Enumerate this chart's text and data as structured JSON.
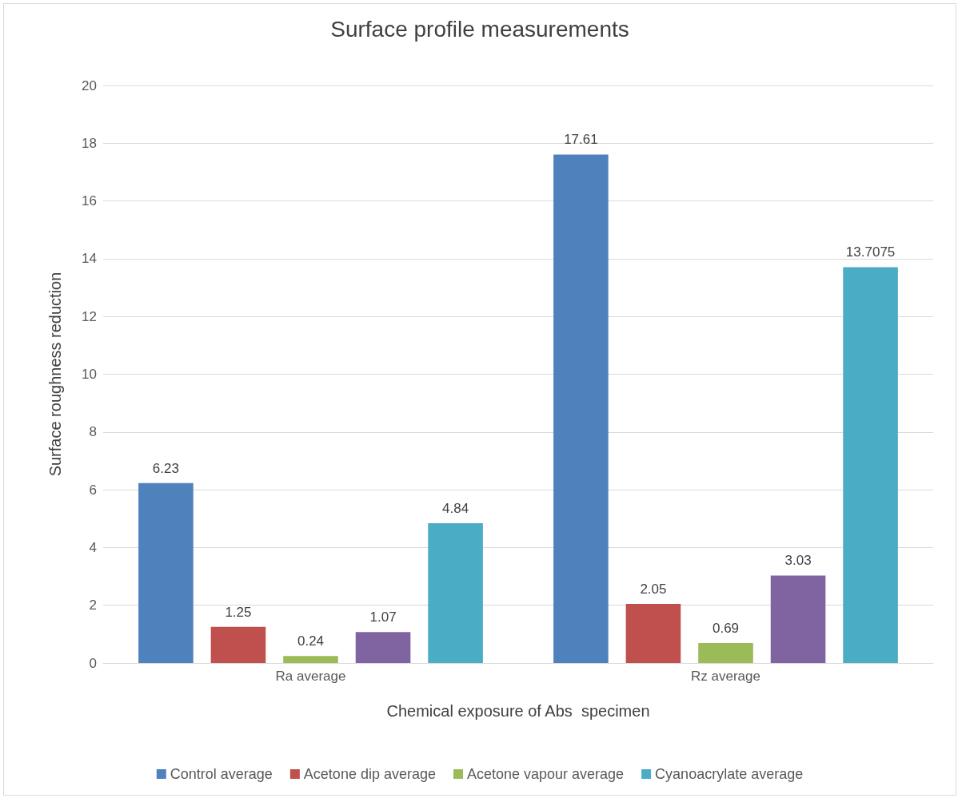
{
  "chart_data": {
    "type": "bar",
    "title": "Surface profile measurements",
    "xlabel": "Chemical exposure of Abs  specimen",
    "ylabel": "Surface roughness reduction",
    "categories": [
      "Ra average",
      "Rz average"
    ],
    "series": [
      {
        "name": "Control average",
        "color": "#4f81bd",
        "values": [
          6.23,
          17.61
        ]
      },
      {
        "name": "Acetone dip average",
        "color": "#c0504d",
        "values": [
          1.25,
          2.05
        ]
      },
      {
        "name": "Acetone vapour average",
        "color": "#9bbb59",
        "values": [
          0.24,
          0.69
        ]
      },
      {
        "color": "#8064a2",
        "values": [
          1.07,
          3.03
        ]
      },
      {
        "name": "Cyanoacrylate average",
        "color": "#4bacc6",
        "values": [
          4.84,
          13.7075
        ]
      }
    ],
    "ylim": [
      0,
      20
    ],
    "yticks": [
      0,
      2,
      4,
      6,
      8,
      10,
      12,
      14,
      16,
      18,
      20
    ],
    "grid": "y",
    "legend": "bottom",
    "data_labels": true
  }
}
